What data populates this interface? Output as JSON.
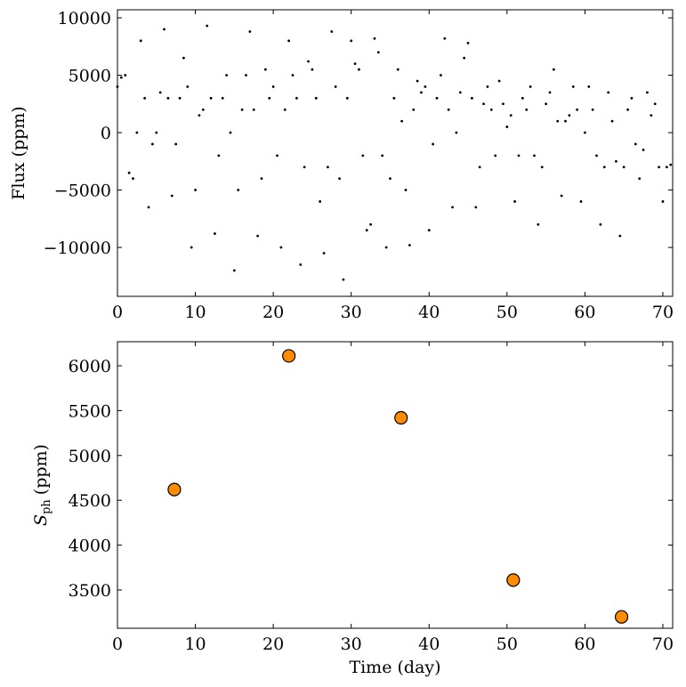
{
  "chart_data": [
    {
      "type": "scatter",
      "ylabel": "Flux (ppm)",
      "color": "#000000",
      "marker_size": 1.4,
      "xlim": [
        0,
        71.26
      ],
      "xticks": [
        0,
        10,
        20,
        30,
        40,
        50,
        60,
        70
      ],
      "ylim": [
        -14260,
        10700
      ],
      "yticks": [
        {
          "value": -10000,
          "label": "−10000"
        },
        {
          "value": -5000,
          "label": "−5000"
        },
        0,
        5000,
        10000
      ],
      "x": [
        0,
        0.5,
        1,
        1.5,
        2,
        2.5,
        3,
        3.5,
        4,
        4.5,
        5,
        5.5,
        6,
        6.5,
        7,
        7.5,
        8,
        8.5,
        9,
        9.5,
        10,
        10.5,
        11,
        11.5,
        12,
        12.5,
        13,
        13.5,
        14,
        14.5,
        15,
        15.5,
        16,
        16.5,
        17,
        17.5,
        18,
        18.5,
        19,
        19.5,
        20,
        20.5,
        21,
        21.5,
        22,
        22.5,
        23,
        23.5,
        24,
        24.5,
        25,
        25.5,
        26,
        26.5,
        27,
        27.5,
        28,
        28.5,
        29,
        29.5,
        30,
        30.5,
        31,
        31.5,
        32,
        32.5,
        33,
        33.5,
        34,
        34.5,
        35,
        35.5,
        36,
        36.5,
        37,
        37.5,
        38,
        38.5,
        39,
        39.5,
        40,
        40.5,
        41,
        41.5,
        42,
        42.5,
        43,
        43.5,
        44,
        44.5,
        45,
        45.5,
        46,
        46.5,
        47,
        47.5,
        48,
        48.5,
        49,
        49.5,
        50,
        50.5,
        51,
        51.5,
        52,
        52.5,
        53,
        53.5,
        54,
        54.5,
        55,
        55.5,
        56,
        56.5,
        57,
        57.5,
        58,
        58.5,
        59,
        59.5,
        60,
        60.5,
        61,
        61.5,
        62,
        62.5,
        63,
        63.5,
        64,
        64.5,
        65,
        65.5,
        66,
        66.5,
        67,
        67.5,
        68,
        68.5,
        69,
        69.5,
        70,
        70.5,
        71
      ],
      "values": [
        4000,
        4800,
        5000,
        -3500,
        -4000,
        0,
        8000,
        3000,
        -6500,
        -1000,
        0,
        3500,
        9000,
        3000,
        -5500,
        -1000,
        3000,
        6500,
        4000,
        -10000,
        -5000,
        1500,
        2000,
        9300,
        3000,
        -8800,
        -2000,
        3000,
        5000,
        0,
        -12000,
        -5000,
        2000,
        5000,
        8800,
        2000,
        -9000,
        -4000,
        5500,
        3000,
        4000,
        -2000,
        -10000,
        2000,
        8000,
        5000,
        3000,
        -11500,
        -3000,
        6200,
        5500,
        3000,
        -6000,
        -10500,
        -3000,
        8800,
        4000,
        -4000,
        -12800,
        3000,
        8000,
        6000,
        5500,
        -2000,
        -8500,
        -8000,
        8200,
        7000,
        -2000,
        -10000,
        -4000,
        3000,
        5500,
        1000,
        -5000,
        -9800,
        2000,
        4500,
        3500,
        4000,
        -8500,
        -1000,
        3000,
        5000,
        8200,
        2000,
        -6500,
        0,
        3500,
        6500,
        7800,
        3000,
        -6500,
        -3000,
        2500,
        4000,
        2000,
        -2000,
        4500,
        2500,
        500,
        1500,
        -6000,
        -2000,
        3000,
        2000,
        4000,
        -2000,
        -8000,
        -3000,
        2500,
        3500,
        5500,
        1000,
        -5500,
        1000,
        1500,
        4000,
        2000,
        -6000,
        0,
        4000,
        2000,
        -2000,
        -8000,
        -3000,
        3500,
        1000,
        -2500,
        -9000,
        -3000,
        2000,
        3000,
        -1000,
        -4000,
        -1500,
        3500,
        1500,
        2500,
        -3000,
        -6000,
        -3000,
        -2800
      ]
    },
    {
      "type": "scatter",
      "xlabel": "Time (day)",
      "ylabel": {
        "symbol": "S",
        "subscript": "ph",
        "unit": "(ppm)"
      },
      "color": "#ff8c00",
      "marker_size": 7,
      "xlim": [
        0,
        71.26
      ],
      "xticks": [
        0,
        10,
        20,
        30,
        40,
        50,
        60,
        70
      ],
      "ylim": [
        3073,
        6268
      ],
      "yticks": [
        3500,
        4000,
        4500,
        5000,
        5500,
        6000
      ],
      "x": [
        7.3,
        22.0,
        36.4,
        50.8,
        64.7
      ],
      "values": [
        4620,
        6110,
        5420,
        3610,
        3200
      ]
    }
  ]
}
